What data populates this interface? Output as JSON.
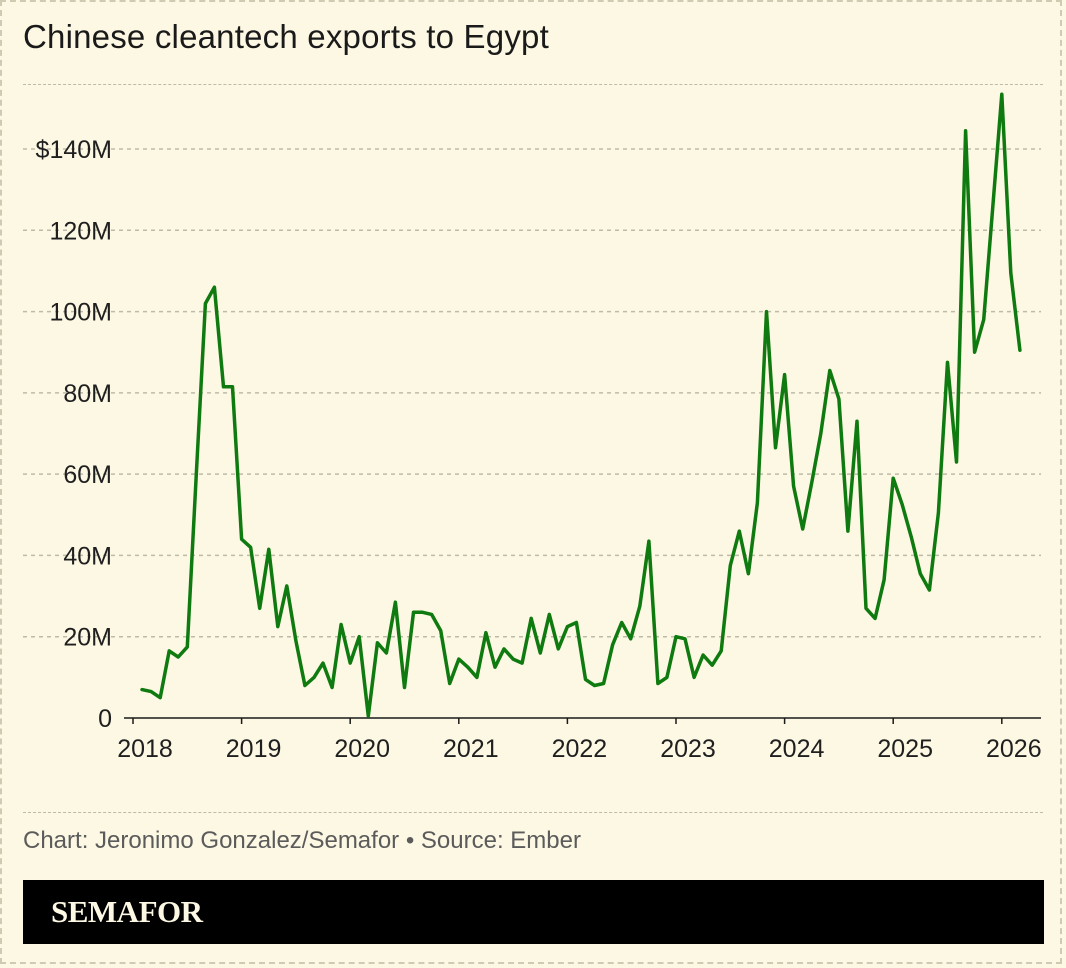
{
  "title": "Chinese cleantech exports to Egypt",
  "credit": "Chart: Jeronimo Gonzalez/Semafor • Source: Ember",
  "brand": "SEMAFOR",
  "colors": {
    "line": "#0f7a0f",
    "background": "#fcf8e3",
    "grid": "#bdbaa8"
  },
  "chart_data": {
    "type": "line",
    "title": "Chinese cleantech exports to Egypt",
    "xlabel": "",
    "ylabel": "",
    "x_tick_labels": [
      "2018",
      "2019",
      "2020",
      "2021",
      "2022",
      "2023",
      "2024",
      "2025",
      "2026"
    ],
    "y_tick_labels": [
      "0",
      "20M",
      "40M",
      "60M",
      "80M",
      "100M",
      "120M",
      "$140M"
    ],
    "y_tick_values": [
      0,
      20,
      40,
      60,
      80,
      100,
      120,
      140
    ],
    "ylim": [
      0,
      156
    ],
    "xlim": [
      2018,
      2026.25
    ],
    "unit": "USD millions",
    "series": [
      {
        "name": "Exports",
        "start": "2018-02",
        "values": [
          7,
          6.5,
          5,
          16.5,
          15,
          17.5,
          60,
          102,
          106,
          81.5,
          81.5,
          44,
          42,
          27,
          41.5,
          22.5,
          32.5,
          19,
          8,
          10,
          13.5,
          7.5,
          23,
          13.5,
          20,
          0.5,
          18.5,
          16,
          28.5,
          7.5,
          26,
          26,
          25.5,
          21.5,
          8.5,
          14.5,
          12.5,
          10,
          21,
          12.5,
          17,
          14.5,
          13.5,
          24.5,
          16,
          25.5,
          17,
          22.5,
          23.5,
          9.5,
          8,
          8.5,
          18,
          23.5,
          19.5,
          27.5,
          43.5,
          8.5,
          10,
          20,
          19.5,
          10,
          15.5,
          13,
          16.5,
          37.5,
          46,
          35.5,
          53,
          100,
          66.5,
          84.5,
          57,
          46.5,
          58,
          70,
          85.5,
          78.5,
          46,
          73,
          27,
          24.5,
          34,
          59,
          52.5,
          44.5,
          35.5,
          31.5,
          50.5,
          87.5,
          63,
          144.5,
          90,
          98,
          125.5,
          153.5,
          109.5,
          90.5
        ]
      }
    ]
  }
}
